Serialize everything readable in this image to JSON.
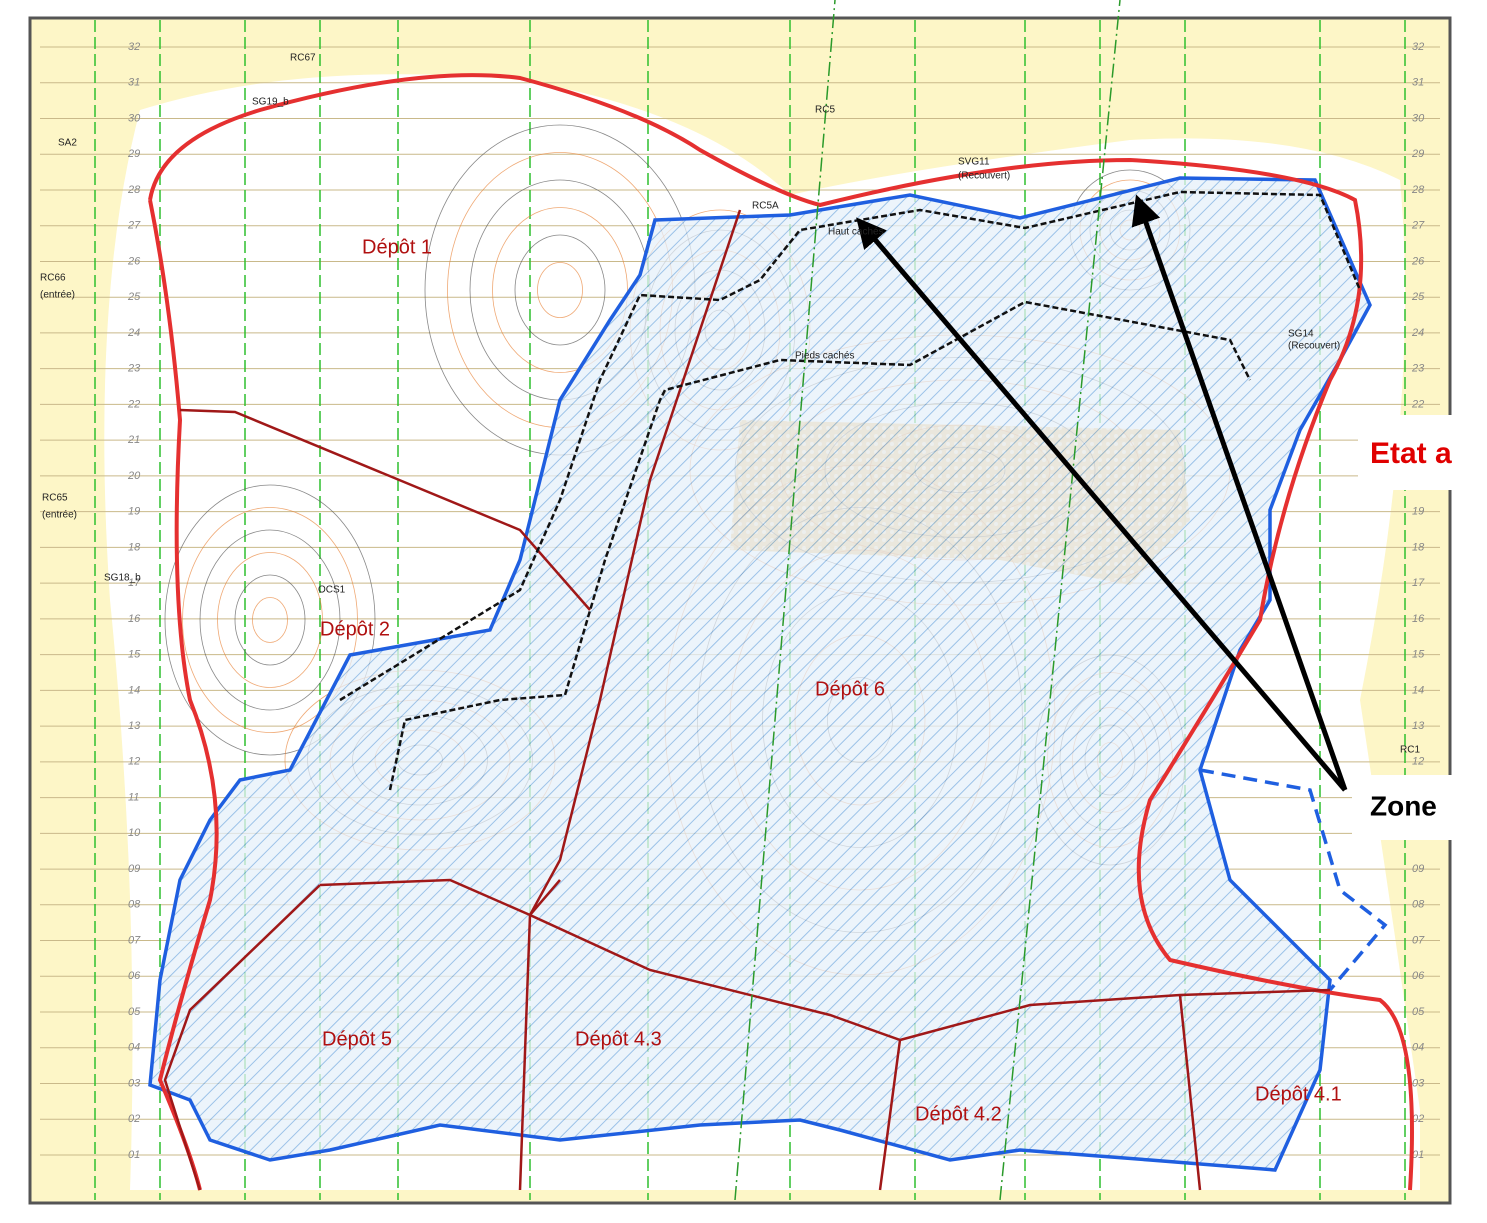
{
  "map": {
    "zones": [
      "Dépôt 1",
      "Dépôt 2",
      "Dépôt 6",
      "Dépôt 5",
      "Dépôt 4.3",
      "Dépôt 4.2",
      "Dépôt 4.1"
    ],
    "annotations": [
      "Etat a",
      "Zone"
    ],
    "labels": [
      "RC67",
      "SG19_b",
      "SA2",
      "RC66",
      "(entrée)",
      "RC65",
      "(entrée)",
      "SG18_b",
      "OCS1",
      "RC5",
      "RC5A",
      "Haut cachés",
      "Pieds cachés",
      "SVG11",
      "(Recouvert)",
      "SG14",
      "(Recouvert)",
      "RC1"
    ],
    "row_numbers": [
      "32",
      "31",
      "30",
      "29",
      "28",
      "27",
      "26",
      "25",
      "24",
      "23",
      "22",
      "21",
      "20",
      "19",
      "18",
      "17",
      "16",
      "15",
      "14",
      "13",
      "12",
      "11",
      "10",
      "09",
      "08",
      "07",
      "06",
      "05",
      "04",
      "03",
      "02",
      "01"
    ]
  }
}
